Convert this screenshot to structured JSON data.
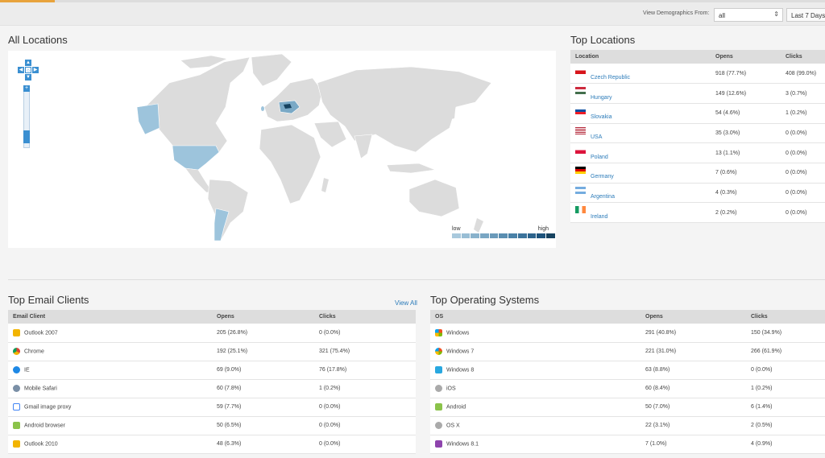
{
  "filters": {
    "label": "View Demographics From:",
    "selected": "all",
    "range": "Last 7 Days"
  },
  "map": {
    "title": "All Locations",
    "legend_low": "low",
    "legend_high": "high",
    "legend_colors": [
      "#a9c9dd",
      "#99bed5",
      "#89b2cc",
      "#79a6c3",
      "#6a9aba",
      "#5a8eb1",
      "#4a82a8",
      "#3b739b",
      "#2c638c",
      "#1d537c",
      "#16425f"
    ]
  },
  "top_locations": {
    "title": "Top Locations",
    "headers": [
      "Location",
      "Opens",
      "Clicks"
    ],
    "rows": [
      {
        "name": "Czech Republic",
        "opens": "918 (77.7%)",
        "clicks": "408 (99.0%)",
        "flag": "cz"
      },
      {
        "name": "Hungary",
        "opens": "149 (12.6%)",
        "clicks": "3 (0.7%)",
        "flag": "hu"
      },
      {
        "name": "Slovakia",
        "opens": "54 (4.6%)",
        "clicks": "1 (0.2%)",
        "flag": "sk"
      },
      {
        "name": "USA",
        "opens": "35 (3.0%)",
        "clicks": "0 (0.0%)",
        "flag": "us"
      },
      {
        "name": "Poland",
        "opens": "13 (1.1%)",
        "clicks": "0 (0.0%)",
        "flag": "pl"
      },
      {
        "name": "Germany",
        "opens": "7 (0.6%)",
        "clicks": "0 (0.0%)",
        "flag": "de"
      },
      {
        "name": "Argentina",
        "opens": "4 (0.3%)",
        "clicks": "0 (0.0%)",
        "flag": "ar"
      },
      {
        "name": "Ireland",
        "opens": "2 (0.2%)",
        "clicks": "0 (0.0%)",
        "flag": "ie"
      }
    ]
  },
  "email_clients": {
    "title": "Top Email Clients",
    "view_all": "View All",
    "headers": [
      "Email Client",
      "Opens",
      "Clicks"
    ],
    "rows": [
      {
        "name": "Outlook 2007",
        "opens": "205 (26.8%)",
        "clicks": "0 (0.0%)",
        "icon": "outlook-icon"
      },
      {
        "name": "Chrome",
        "opens": "192 (25.1%)",
        "clicks": "321 (75.4%)",
        "icon": "chrome-icon"
      },
      {
        "name": "IE",
        "opens": "69 (9.0%)",
        "clicks": "76 (17.8%)",
        "icon": "ie-icon"
      },
      {
        "name": "Mobile Safari",
        "opens": "60 (7.8%)",
        "clicks": "1 (0.2%)",
        "icon": "safari-icon"
      },
      {
        "name": "Gmail image proxy",
        "opens": "59 (7.7%)",
        "clicks": "0 (0.0%)",
        "icon": "gmail-icon"
      },
      {
        "name": "Android browser",
        "opens": "50 (6.5%)",
        "clicks": "0 (0.0%)",
        "icon": "android-icon"
      },
      {
        "name": "Outlook 2010",
        "opens": "48 (6.3%)",
        "clicks": "0 (0.0%)",
        "icon": "outlook-icon"
      }
    ]
  },
  "operating_systems": {
    "title": "Top Operating Systems",
    "headers": [
      "OS",
      "Opens",
      "Clicks"
    ],
    "rows": [
      {
        "name": "Windows",
        "opens": "291 (40.8%)",
        "clicks": "150 (34.9%)",
        "icon": "windows-icon"
      },
      {
        "name": "Windows 7",
        "opens": "221 (31.0%)",
        "clicks": "266 (61.9%)",
        "icon": "windows7-icon"
      },
      {
        "name": "Windows 8",
        "opens": "63 (8.8%)",
        "clicks": "0 (0.0%)",
        "icon": "windows8-icon"
      },
      {
        "name": "iOS",
        "opens": "60 (8.4%)",
        "clicks": "1 (0.2%)",
        "icon": "apple-icon"
      },
      {
        "name": "Android",
        "opens": "50 (7.0%)",
        "clicks": "6 (1.4%)",
        "icon": "android-icon"
      },
      {
        "name": "OS X",
        "opens": "22 (3.1%)",
        "clicks": "2 (0.5%)",
        "icon": "apple-icon"
      },
      {
        "name": "Windows 8.1",
        "opens": "7 (1.0%)",
        "clicks": "4 (0.9%)",
        "icon": "windows81-icon"
      }
    ]
  }
}
